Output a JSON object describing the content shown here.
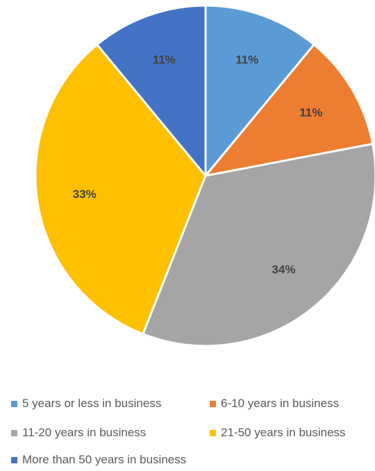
{
  "chart_data": {
    "type": "pie",
    "title": "",
    "slices": [
      {
        "label": "5 years or less in business",
        "value": 11,
        "display": "11%",
        "color": "#5B9BD5"
      },
      {
        "label": "6-10 years in business",
        "value": 11,
        "display": "11%",
        "color": "#ED7D31"
      },
      {
        "label": "11-20 years in business",
        "value": 34,
        "display": "34%",
        "color": "#A5A5A5"
      },
      {
        "label": "21-50 years in business",
        "value": 33,
        "display": "33%",
        "color": "#FFC000"
      },
      {
        "label": "More than 50 years in business",
        "value": 11,
        "display": "11%",
        "color": "#4472C4"
      }
    ],
    "legend_position": "bottom"
  }
}
